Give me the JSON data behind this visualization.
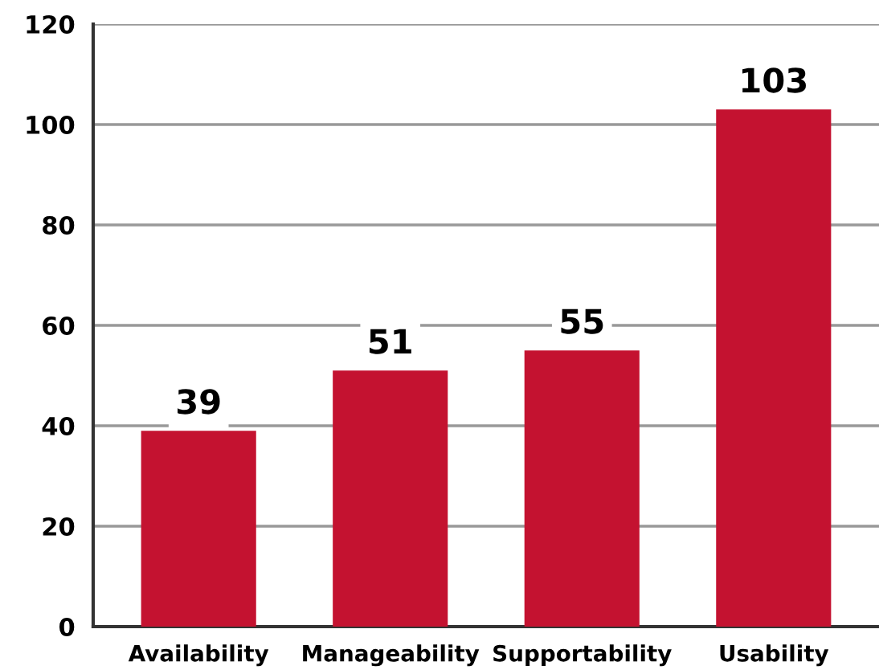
{
  "chart_data": {
    "type": "bar",
    "categories": [
      "Availability",
      "Manageability",
      "Supportability",
      "Usability"
    ],
    "values": [
      39,
      51,
      55,
      103
    ],
    "color": "#c41230",
    "ylim": [
      0,
      120
    ],
    "yticks": [
      0,
      20,
      40,
      60,
      80,
      100,
      120
    ],
    "grid": "y",
    "data_labels": true
  }
}
